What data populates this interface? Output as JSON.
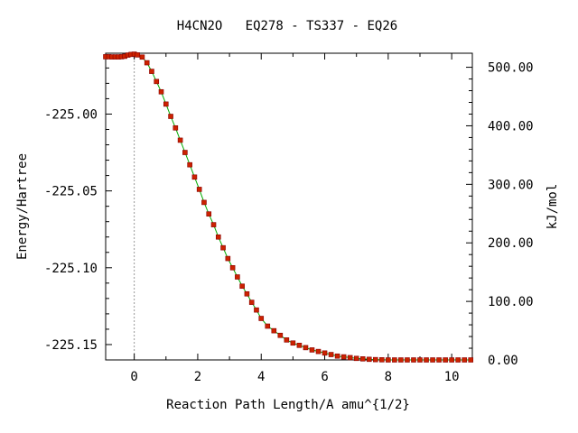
{
  "chart_data": {
    "type": "line",
    "title": "H4CN2O   EQ278 - TS337 - EQ26",
    "xlabel": "Reaction Path Length/A amu^{1/2}",
    "ylabel": "Energy/Hartree",
    "y2label": "kJ/mol",
    "xlim": [
      -0.9,
      10.65
    ],
    "ylim": [
      -225.16,
      -224.9604
    ],
    "y2lim": [
      0.0,
      524.0
    ],
    "x_ticks": [
      0,
      2,
      4,
      6,
      8,
      10
    ],
    "x_tick_labels": [
      "0",
      "2",
      "4",
      "6",
      "8",
      "10"
    ],
    "y_ticks": [
      -225.0,
      -225.05,
      -225.1,
      -225.15
    ],
    "y_tick_labels": [
      "-225.00",
      "-225.05",
      "-225.10",
      "-225.15"
    ],
    "y2_ticks": [
      0,
      100,
      200,
      300,
      400,
      500
    ],
    "y2_tick_labels": [
      "0.00",
      "100.00",
      "200.00",
      "300.00",
      "400.00",
      "500.00"
    ],
    "ts_marker_x": 0.0,
    "grid": false,
    "line_color": "#00aa00",
    "marker_color": "#cc2200",
    "marker_edge_color": "#880000",
    "series": [
      {
        "x": [
          -0.9,
          -0.8,
          -0.7,
          -0.6,
          -0.5,
          -0.4,
          -0.3,
          -0.2,
          -0.1,
          0.0,
          0.1,
          0.25,
          0.4,
          0.55,
          0.7,
          0.85,
          1.0,
          1.15,
          1.3,
          1.45,
          1.6,
          1.75,
          1.9,
          2.05,
          2.2,
          2.35,
          2.5,
          2.65,
          2.8,
          2.95,
          3.1,
          3.25,
          3.4,
          3.55,
          3.7,
          3.85,
          4.0,
          4.2,
          4.4,
          4.6,
          4.8,
          5.0,
          5.2,
          5.4,
          5.6,
          5.8,
          6.0,
          6.2,
          6.4,
          6.6,
          6.8,
          7.0,
          7.2,
          7.4,
          7.6,
          7.8,
          8.0,
          8.2,
          8.4,
          8.6,
          8.8,
          9.0,
          9.2,
          9.4,
          9.6,
          9.8,
          10.0,
          10.2,
          10.4,
          10.6
        ],
        "y": [
          -224.9627,
          -224.9627,
          -224.9628,
          -224.9628,
          -224.9628,
          -224.9627,
          -224.9624,
          -224.9616,
          -224.9612,
          -224.961,
          -224.9615,
          -224.9629,
          -224.9666,
          -224.9722,
          -224.9788,
          -224.9855,
          -224.9935,
          -225.0015,
          -225.009,
          -225.017,
          -225.025,
          -225.033,
          -225.041,
          -225.049,
          -225.0575,
          -225.065,
          -225.072,
          -225.08,
          -225.087,
          -225.094,
          -225.1,
          -225.106,
          -225.112,
          -225.117,
          -225.1225,
          -225.1275,
          -225.133,
          -225.138,
          -225.141,
          -225.144,
          -225.147,
          -225.149,
          -225.1505,
          -225.152,
          -225.1535,
          -225.1545,
          -225.1555,
          -225.1565,
          -225.1575,
          -225.158,
          -225.1585,
          -225.159,
          -225.1593,
          -225.1596,
          -225.1598,
          -225.1599,
          -225.16,
          -225.16,
          -225.16,
          -225.16,
          -225.16,
          -225.16,
          -225.16,
          -225.16,
          -225.16,
          -225.16,
          -225.16,
          -225.16,
          -225.16,
          -225.16
        ]
      }
    ]
  }
}
